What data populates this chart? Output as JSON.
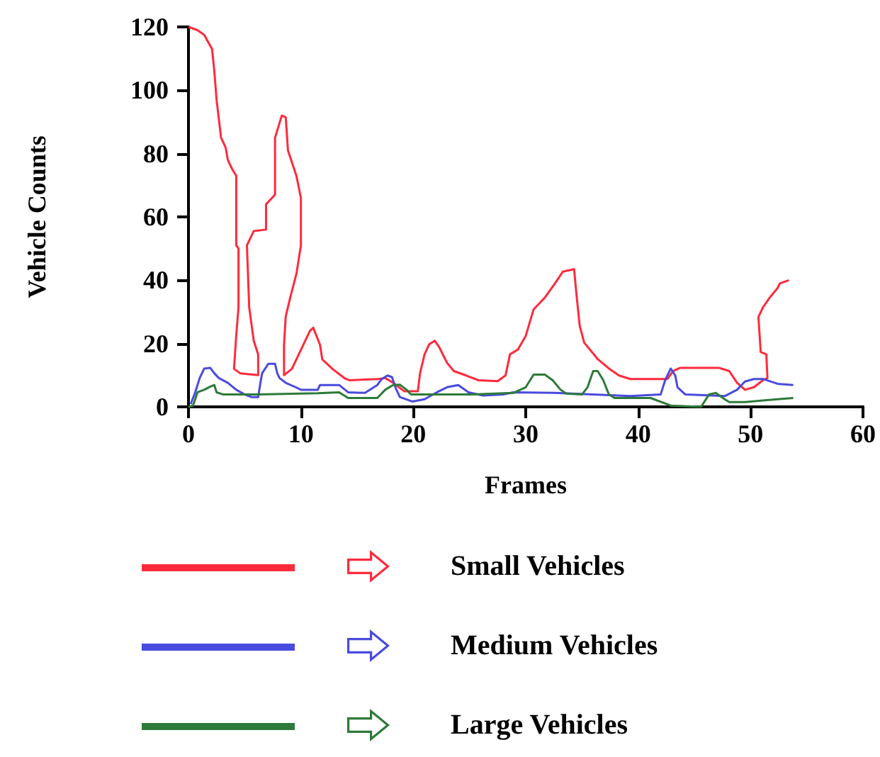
{
  "chart_data": {
    "type": "line",
    "xlabel": "Frames",
    "ylabel": "Vehicle Counts",
    "xlim": [
      0,
      60
    ],
    "xticks": [
      0,
      10,
      20,
      30,
      40,
      50,
      60
    ],
    "ylim": [
      0,
      120
    ],
    "yticks": [
      0,
      20,
      40,
      60,
      80,
      100,
      120
    ],
    "grid": false,
    "legend": "bottom",
    "marker": "none",
    "line_style": "solid",
    "series": [
      {
        "name": "Small Vehicles",
        "color": "#ff2a3c",
        "x": [
          0,
          0.8,
          1.4,
          2.1,
          2.3,
          2.5,
          2.9,
          3.3,
          3.5,
          3.9,
          4.25,
          4.25,
          4.45,
          4.45,
          4.25,
          4.05,
          4.6,
          6.2,
          6.2,
          5.8,
          5.4,
          5.2,
          5.8,
          6.9,
          6.9,
          7.7,
          7.7,
          8.3,
          8.65,
          8.85,
          9.6,
          10,
          10,
          9.6,
          9.05,
          8.65,
          8.5,
          8.5,
          9.2,
          10,
          10.8,
          11.1,
          11.7,
          11.9,
          12.8,
          13.9,
          14.3,
          16.9,
          17.5,
          18.2,
          19.2,
          20.4,
          20.6,
          21,
          21.4,
          21.9,
          22.3,
          23,
          23.6,
          24.7,
          25.8,
          27.5,
          28.2,
          28.6,
          29.3,
          30,
          30.7,
          31.7,
          32.6,
          33.3,
          34.3,
          34.5,
          34.8,
          35.2,
          36.4,
          37.4,
          38.3,
          39.3,
          42.6,
          43.1,
          43.7,
          47.2,
          48.1,
          48.8,
          49.5,
          50.3,
          51.1,
          51.5,
          51.4,
          50.9,
          50.7,
          51.1,
          51.7,
          52.4,
          52.6,
          53.4
        ],
        "values": [
          120,
          119,
          117.5,
          113,
          106,
          97,
          85,
          82,
          78,
          75,
          73,
          51,
          50,
          31.5,
          22.5,
          12,
          10.6,
          10,
          16.5,
          21,
          31.5,
          51,
          55.5,
          56,
          64,
          67,
          85,
          92,
          91.5,
          81,
          73,
          66,
          51,
          42,
          34.5,
          28.5,
          19.6,
          10,
          12,
          18,
          24,
          25,
          19.6,
          15,
          12,
          9,
          8.4,
          8.8,
          9.1,
          7.6,
          4.9,
          4.9,
          10.6,
          16.6,
          19.7,
          20.9,
          18.9,
          13.9,
          11.3,
          9.9,
          8.4,
          8.1,
          9.9,
          16.6,
          18.1,
          22.4,
          30.8,
          34.5,
          39,
          42.7,
          43.5,
          36,
          25.6,
          20.3,
          15.1,
          12.1,
          9.9,
          8.8,
          8.8,
          11.3,
          12.3,
          12.3,
          11.3,
          7.6,
          5.4,
          6.2,
          8.4,
          9.1,
          16.6,
          17.3,
          28.4,
          31.4,
          34.5,
          37.5,
          39,
          40
        ]
      },
      {
        "name": "Medium Vehicles",
        "color": "#4a4adf",
        "x": [
          0.2,
          0.6,
          1,
          1.4,
          1.95,
          2.3,
          2.7,
          3.5,
          4.25,
          5,
          5.6,
          6.2,
          6.4,
          6.55,
          7.1,
          7.7,
          7.9,
          8.1,
          8.65,
          9.6,
          10,
          11.5,
          11.7,
          13.4,
          14.2,
          15.7,
          16.8,
          17.2,
          17.7,
          18.1,
          18.4,
          18.8,
          19.9,
          21,
          22.1,
          23,
          24,
          24.9,
          26.2,
          28,
          28.9,
          32.6,
          39.3,
          42,
          42.4,
          42.9,
          43.3,
          43.5,
          44.2,
          47.7,
          48.8,
          49.5,
          50.3,
          51.1,
          52.4,
          53.8
        ],
        "values": [
          0.9,
          4.6,
          9.1,
          12.1,
          12.3,
          10.6,
          9.1,
          7.6,
          5.4,
          3.9,
          3.1,
          3.1,
          7.6,
          10.6,
          13.6,
          13.6,
          10.6,
          9.1,
          7.6,
          6.1,
          5.4,
          5.4,
          6.9,
          6.9,
          4.6,
          4.4,
          6.9,
          8.8,
          9.9,
          9.4,
          6.2,
          3.1,
          1.7,
          2.4,
          4.6,
          6.2,
          6.9,
          4.6,
          3.6,
          3.9,
          4.6,
          4.4,
          3.4,
          3.9,
          8.4,
          12.1,
          9.9,
          6.2,
          3.9,
          3.4,
          5.4,
          8,
          8.8,
          8.8,
          7.3,
          6.9
        ]
      },
      {
        "name": "Large Vehicles",
        "color": "#2e7a3a",
        "x": [
          0,
          0.4,
          0.6,
          0.8,
          1.4,
          1.95,
          2.3,
          2.5,
          3.1,
          6.2,
          11.5,
          13.4,
          14.2,
          16.8,
          17.5,
          18.2,
          18.8,
          19.4,
          19.8,
          25.3,
          28.9,
          30,
          30.7,
          31.7,
          32.4,
          33.1,
          33.6,
          35,
          35.5,
          36,
          36.4,
          36.9,
          37.4,
          37.9,
          41.1,
          42.9,
          45.6,
          46.3,
          46.9,
          47.7,
          48.1,
          49.5,
          51.1,
          52.4,
          53.8
        ],
        "values": [
          0,
          0.4,
          2.4,
          4.6,
          5.4,
          6.4,
          6.9,
          4.6,
          3.9,
          3.9,
          4.3,
          4.6,
          2.8,
          2.8,
          5.4,
          6.9,
          7,
          5.4,
          3.9,
          3.9,
          4.4,
          6.2,
          10.2,
          10.2,
          8.4,
          5.4,
          4.2,
          3.9,
          6.2,
          11.3,
          11.3,
          8.4,
          3.9,
          2.8,
          2.8,
          0.4,
          0,
          3.9,
          4.4,
          2.4,
          1.5,
          1.5,
          2,
          2.4,
          2.8
        ]
      }
    ]
  }
}
